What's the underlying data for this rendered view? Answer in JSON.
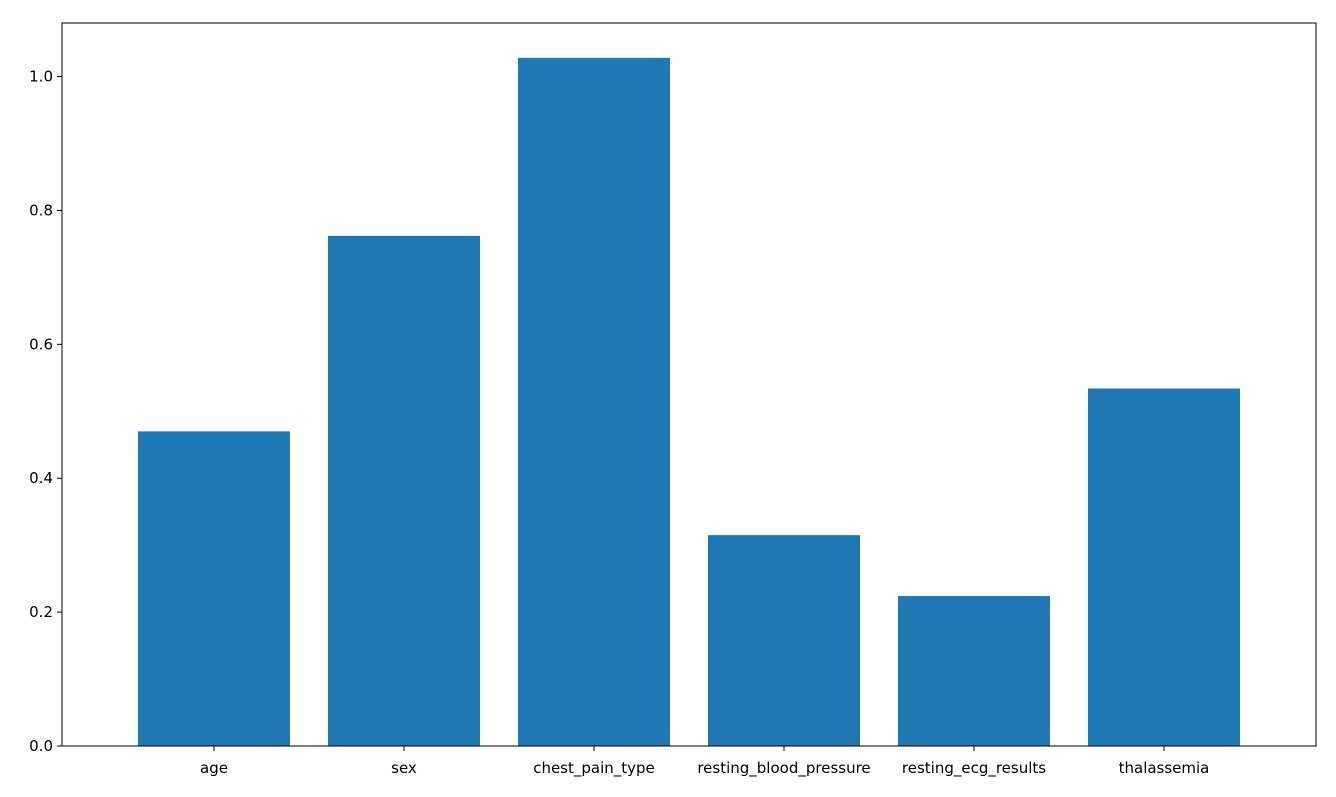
{
  "chart_data": {
    "type": "bar",
    "title": "",
    "xlabel": "",
    "ylabel": "",
    "categories": [
      "age",
      "sex",
      "chest_pain_type",
      "resting_blood_pressure",
      "resting_ecg_results",
      "thalassemia"
    ],
    "values": [
      0.47,
      0.762,
      1.028,
      0.315,
      0.224,
      0.534
    ],
    "ylim": [
      0,
      1.08
    ],
    "yticks": [
      0.0,
      0.2,
      0.4,
      0.6,
      0.8,
      1.0
    ],
    "ytick_labels": [
      "0.0",
      "0.2",
      "0.4",
      "0.6",
      "0.8",
      "1.0"
    ],
    "grid": false,
    "bar_color": "#1f77b4"
  }
}
